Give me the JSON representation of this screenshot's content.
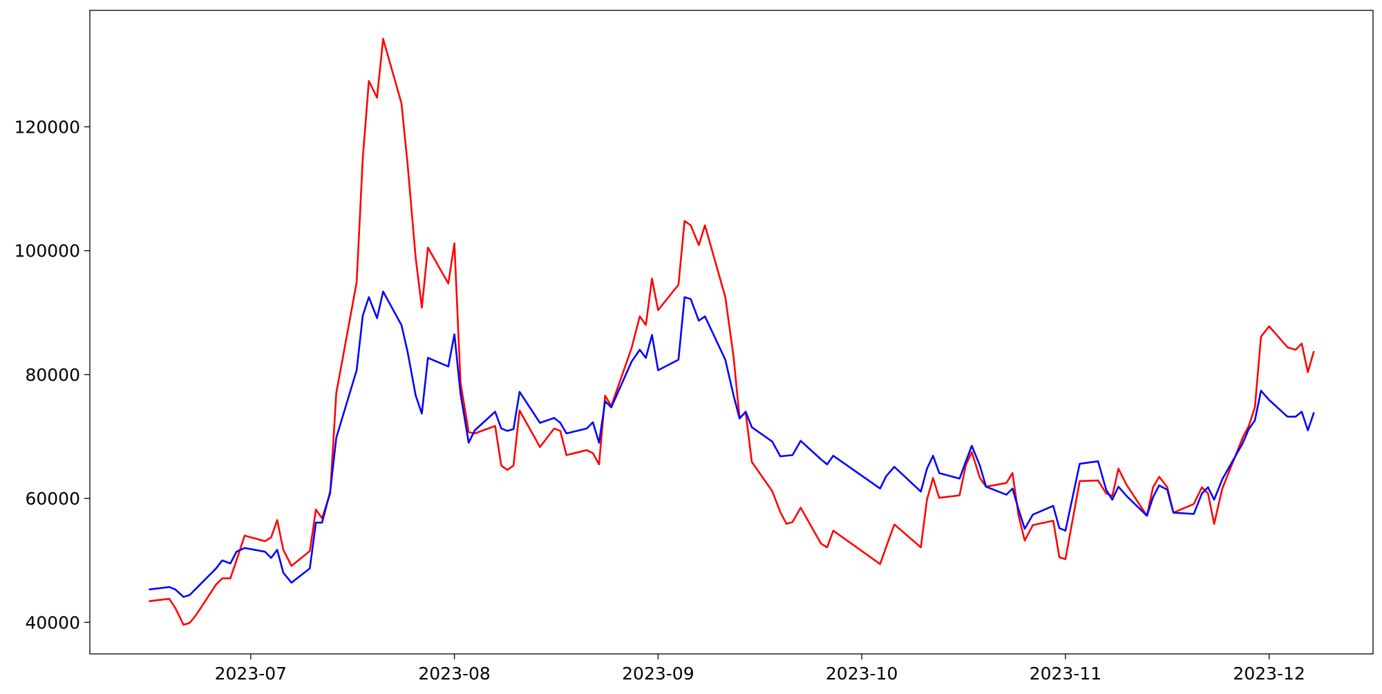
{
  "chart_data": {
    "type": "line",
    "x": [
      6.5,
      6.6,
      6.63,
      6.67,
      6.7,
      6.73,
      6.83,
      6.86,
      6.9,
      6.93,
      6.97,
      7.07,
      7.1,
      7.13,
      7.16,
      7.2,
      7.29,
      7.32,
      7.35,
      7.39,
      7.42,
      7.52,
      7.55,
      7.58,
      7.62,
      7.65,
      7.74,
      7.77,
      7.81,
      7.84,
      7.87,
      7.97,
      8.0,
      8.03,
      8.07,
      8.1,
      8.2,
      8.23,
      8.26,
      8.29,
      8.32,
      8.42,
      8.49,
      8.52,
      8.55,
      8.65,
      8.68,
      8.71,
      8.74,
      8.77,
      8.87,
      8.91,
      8.94,
      8.97,
      9.0,
      9.1,
      9.13,
      9.16,
      9.2,
      9.23,
      9.33,
      9.37,
      9.4,
      9.43,
      9.46,
      9.56,
      9.6,
      9.63,
      9.66,
      9.7,
      9.8,
      9.83,
      9.86,
      10.09,
      10.12,
      10.16,
      10.29,
      10.32,
      10.35,
      10.38,
      10.48,
      10.51,
      10.54,
      10.58,
      10.61,
      10.71,
      10.74,
      10.77,
      10.8,
      10.84,
      10.94,
      10.97,
      11.0,
      11.07,
      11.16,
      11.2,
      11.23,
      11.26,
      11.3,
      11.4,
      11.43,
      11.46,
      11.5,
      11.53,
      11.63,
      11.67,
      11.7,
      11.73,
      11.77,
      11.87,
      11.9,
      11.93,
      11.96,
      12.0,
      12.09,
      12.13,
      12.16,
      12.19,
      12.22
    ],
    "series": [
      {
        "color": "red",
        "values": [
          43400,
          43800,
          42300,
          39600,
          39900,
          41100,
          46100,
          47100,
          47100,
          50000,
          54000,
          53100,
          53700,
          56500,
          51700,
          49100,
          51500,
          58200,
          56800,
          60800,
          77000,
          94900,
          114900,
          127400,
          124700,
          134200,
          123800,
          114000,
          98800,
          90800,
          100500,
          94700,
          101200,
          78700,
          70700,
          70500,
          71700,
          65300,
          64600,
          65300,
          74200,
          68300,
          71300,
          70900,
          67000,
          67800,
          67300,
          65500,
          76600,
          74900,
          84300,
          89400,
          88000,
          95500,
          90400,
          94500,
          104800,
          104100,
          100900,
          104100,
          92500,
          83000,
          73000,
          73900,
          65900,
          61200,
          57800,
          55900,
          56200,
          58500,
          52700,
          52100,
          54800,
          49400,
          52200,
          55800,
          52100,
          59800,
          63300,
          60100,
          60500,
          65300,
          67500,
          63300,
          61900,
          62500,
          64100,
          57200,
          53200,
          55700,
          56400,
          50500,
          50200,
          62800,
          62900,
          60800,
          60400,
          64800,
          62200,
          57200,
          61800,
          63500,
          61800,
          57700,
          59100,
          61800,
          60800,
          55900,
          61600,
          69800,
          71700,
          74700,
          86100,
          87800,
          84400,
          84000,
          85000,
          80400,
          83800
        ]
      },
      {
        "color": "blue",
        "values": [
          45300,
          45700,
          45300,
          44100,
          44400,
          45400,
          48700,
          50000,
          49500,
          51400,
          52000,
          51400,
          50400,
          51700,
          48000,
          46400,
          48700,
          56100,
          56100,
          61100,
          69800,
          80700,
          89500,
          92500,
          89100,
          93400,
          88000,
          83700,
          76600,
          73700,
          82700,
          81300,
          86500,
          76900,
          69000,
          71000,
          74000,
          71300,
          70900,
          71200,
          77200,
          72200,
          73000,
          72200,
          70500,
          71300,
          72300,
          69000,
          75700,
          74700,
          82100,
          84000,
          82700,
          86400,
          80700,
          82400,
          92500,
          92200,
          88700,
          89400,
          82400,
          76700,
          72900,
          74000,
          71500,
          69200,
          66800,
          66900,
          67000,
          69300,
          66300,
          65500,
          66900,
          61600,
          63600,
          65100,
          61100,
          64800,
          66900,
          64100,
          63200,
          65900,
          68500,
          65300,
          61900,
          60600,
          61600,
          58200,
          55100,
          57400,
          58800,
          55200,
          54800,
          65600,
          66000,
          61400,
          59800,
          61900,
          60400,
          57200,
          60200,
          62100,
          61400,
          57700,
          57500,
          60800,
          61800,
          59800,
          63100,
          68900,
          71200,
          72600,
          77400,
          75900,
          73200,
          73200,
          74000,
          71000,
          73900
        ]
      }
    ],
    "xlim": [
      6.21,
      12.51
    ],
    "xticks": [
      {
        "value": 7,
        "label": "2023-07"
      },
      {
        "value": 8,
        "label": "2023-08"
      },
      {
        "value": 9,
        "label": "2023-09"
      },
      {
        "value": 10,
        "label": "2023-10"
      },
      {
        "value": 11,
        "label": "2023-11"
      },
      {
        "value": 12,
        "label": "2023-12"
      }
    ],
    "ylim": [
      34900,
      138800
    ],
    "yticks": [
      40000,
      60000,
      80000,
      100000,
      120000
    ],
    "grid": false
  }
}
